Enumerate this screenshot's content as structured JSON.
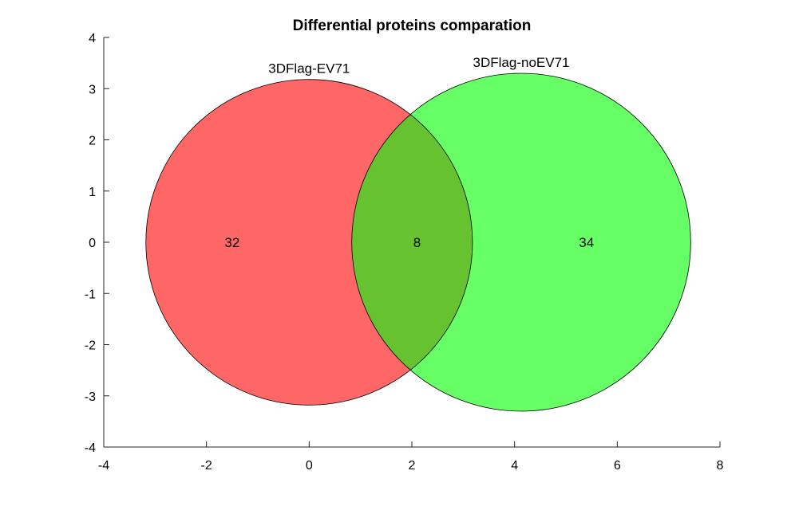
{
  "chart_data": {
    "type": "venn",
    "title": "Differential proteins comparation",
    "xlim": [
      -4,
      8
    ],
    "ylim": [
      -4,
      4
    ],
    "xticks": [
      -4,
      -2,
      0,
      2,
      4,
      6,
      8
    ],
    "yticks": [
      4,
      3,
      2,
      1,
      0,
      -1,
      -2,
      -3,
      -4
    ],
    "xtick_labels": [
      "-4",
      "-2",
      "0",
      "2",
      "4",
      "6",
      "8"
    ],
    "ytick_labels": [
      "4",
      "3",
      "2",
      "1",
      "0",
      "-1",
      "-2",
      "-3",
      "-4"
    ],
    "grid": false,
    "sets": [
      {
        "name": "3DFlag-EV71",
        "color": "#ff6666",
        "center": [
          0,
          0
        ],
        "radius": 3.18
      },
      {
        "name": "3DFlag-noEV71",
        "color": "#66ff66",
        "center": [
          4.13,
          0
        ],
        "radius": 3.3
      }
    ],
    "intersection_color": "#66c22e",
    "regions": [
      {
        "region": "3DFlag-EV71 only",
        "value": "32",
        "at": [
          -1.5,
          0
        ]
      },
      {
        "region": "intersection",
        "value": "8",
        "at": [
          2.1,
          0
        ]
      },
      {
        "region": "3DFlag-noEV71 only",
        "value": "34",
        "at": [
          5.4,
          0
        ]
      }
    ]
  }
}
